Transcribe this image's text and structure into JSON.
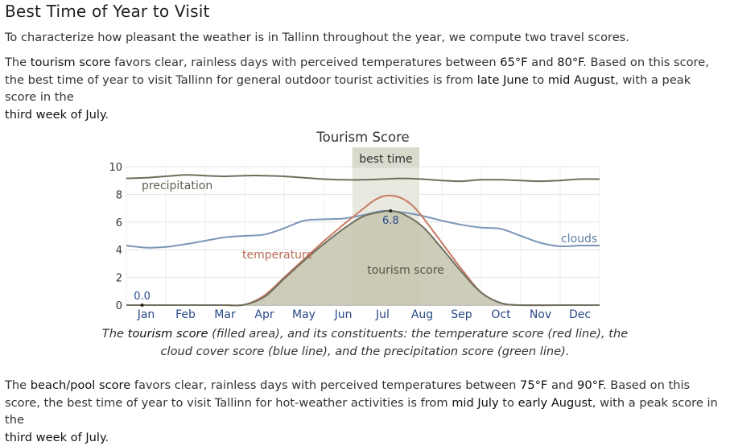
{
  "section": {
    "title": "Best Time of Year to Visit",
    "intro": "To characterize how pleasant the weather is in Tallinn throughout the year, we compute two travel scores."
  },
  "tourism": {
    "p_a": "The ",
    "p_b": "tourism score",
    "p_c": " favors clear, rainless days with perceived temperatures between ",
    "p_d": "65°F",
    "p_e": " and ",
    "p_f": "80°F",
    "p_g": ". Based on this score, the best time of year to visit Tallinn for general outdoor tourist activities is from ",
    "p_h": "late June",
    "p_i": " to ",
    "p_j": "mid August",
    "p_k": ", with a peak score in the",
    "p_l": "third week of July",
    "p_m": "."
  },
  "caption": {
    "a": "The ",
    "b": "tourism score",
    "c": " (filled area), and its constituents: the temperature score (red line), the",
    "d": "cloud cover score (blue line), and the precipitation score (green line)."
  },
  "beach": {
    "p_a": "The ",
    "p_b": "beach/pool score",
    "p_c": " favors clear, rainless days with perceived temperatures between ",
    "p_d": "75°F",
    "p_e": " and ",
    "p_f": "90°F",
    "p_g": ". Based on this score, the best time of year to visit Tallinn for hot-weather activities is from ",
    "p_h": "mid July",
    "p_i": " to ",
    "p_j": "early August",
    "p_k": ", with a peak score in the",
    "p_l": "third week of July",
    "p_m": "."
  },
  "chart_data": {
    "type": "area",
    "title": "Tourism Score",
    "best_time_label": "best time",
    "best_time_range": [
      5.73,
      7.43
    ],
    "ylim": [
      0,
      10
    ],
    "yticks": [
      0,
      2,
      4,
      6,
      8,
      10
    ],
    "xlim": [
      0,
      12
    ],
    "months": [
      "Jan",
      "Feb",
      "Mar",
      "Apr",
      "May",
      "Jun",
      "Jul",
      "Aug",
      "Sep",
      "Oct",
      "Nov",
      "Dec"
    ],
    "colors": {
      "tourism_fill": "#c8c7b0",
      "tourism_line": "#707060",
      "temperature": "#c87a62",
      "clouds": "#7b97b6",
      "precipitation": "#6e6e5c",
      "best_band": "#e9e9df",
      "best_label_bg": "#d9d9cc"
    },
    "series": [
      {
        "name": "tourism score",
        "x": [
          0,
          1,
          2,
          2.5,
          3,
          3.5,
          4,
          4.5,
          5,
          5.5,
          6,
          6.5,
          6.7,
          7,
          7.5,
          8,
          8.5,
          9,
          9.5,
          10,
          11,
          12
        ],
        "y": [
          0,
          0,
          0,
          0,
          0.03,
          0.6,
          1.9,
          3.2,
          4.4,
          5.5,
          6.4,
          6.75,
          6.8,
          6.6,
          5.7,
          4.1,
          2.4,
          0.9,
          0.15,
          0,
          0,
          0
        ]
      },
      {
        "name": "temperature",
        "x": [
          0,
          1,
          2,
          2.5,
          3,
          3.5,
          4,
          4.5,
          5,
          5.5,
          6,
          6.25,
          6.5,
          6.75,
          7,
          7.25,
          7.5,
          8,
          8.5,
          9,
          9.5,
          10,
          11,
          12
        ],
        "y": [
          0,
          0,
          0,
          0,
          0.03,
          0.7,
          2.0,
          3.3,
          4.6,
          5.8,
          6.95,
          7.5,
          7.85,
          7.9,
          7.7,
          7.2,
          6.4,
          4.5,
          2.6,
          0.9,
          0.15,
          0,
          0,
          0
        ]
      },
      {
        "name": "clouds",
        "x": [
          0,
          0.5,
          1,
          1.5,
          2,
          2.5,
          3,
          3.5,
          4,
          4.5,
          5,
          5.5,
          6,
          6.5,
          7,
          7.5,
          8,
          8.5,
          9,
          9.5,
          10,
          10.5,
          11,
          11.5,
          12
        ],
        "y": [
          4.3,
          4.15,
          4.2,
          4.4,
          4.65,
          4.9,
          5.0,
          5.1,
          5.55,
          6.1,
          6.2,
          6.25,
          6.5,
          6.8,
          6.7,
          6.45,
          6.1,
          5.8,
          5.6,
          5.5,
          5.0,
          4.5,
          4.25,
          4.3,
          4.3
        ]
      },
      {
        "name": "precipitation",
        "x": [
          0,
          0.5,
          1,
          1.5,
          2,
          2.5,
          3,
          3.5,
          4,
          4.5,
          5,
          5.5,
          6,
          6.5,
          7,
          7.5,
          8,
          8.5,
          9,
          9.5,
          10,
          10.5,
          11,
          11.5,
          12
        ],
        "y": [
          9.15,
          9.2,
          9.3,
          9.4,
          9.35,
          9.3,
          9.35,
          9.35,
          9.3,
          9.2,
          9.1,
          9.05,
          9.05,
          9.1,
          9.15,
          9.1,
          9.0,
          8.95,
          9.05,
          9.05,
          9.0,
          8.95,
          9.0,
          9.1,
          9.1
        ]
      }
    ],
    "annotations": [
      {
        "label": "6.8",
        "x": 6.7,
        "y": 6.8
      },
      {
        "label": "0.0",
        "x": 0.4,
        "y": 0
      }
    ],
    "series_labels": {
      "precipitation": "precipitation",
      "clouds": "clouds",
      "temperature": "temperature",
      "tourism": "tourism score"
    }
  }
}
